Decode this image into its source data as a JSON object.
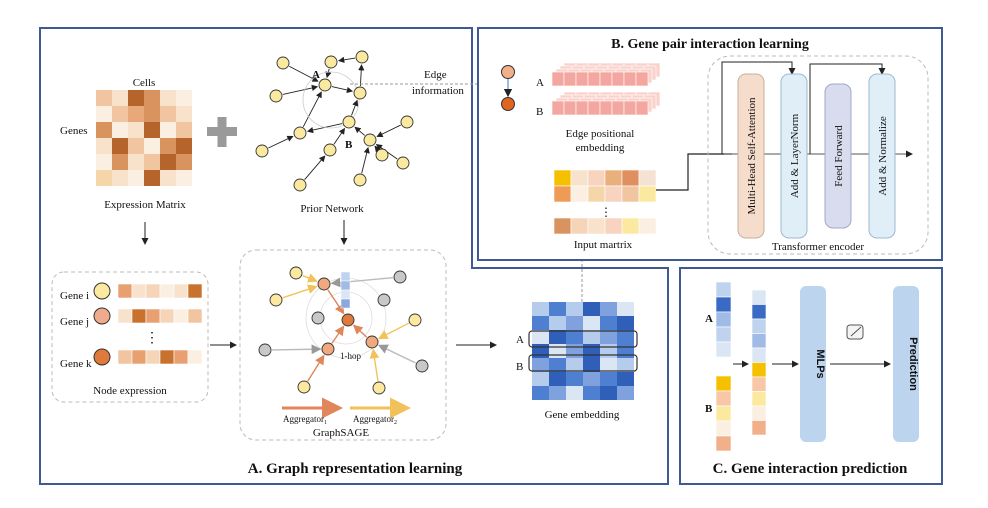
{
  "panel_a": {
    "title": "A. Graph representation learning",
    "cells_label": "Cells",
    "genes_label": "Genes",
    "expression_matrix_label": "Expression Matrix",
    "prior_network_label": "Prior Network",
    "edge_info_line1": "Edge",
    "edge_info_line2": "information",
    "node_a": "A",
    "node_b": "B",
    "gene_i": "Gene i",
    "gene_j": "Gene j",
    "gene_k": "Gene k",
    "ellipsis": "⋮",
    "node_expression_label": "Node expression",
    "hop_label": "1-hop",
    "aggregator1": "Aggregator",
    "aggregator1_sub": "1",
    "aggregator2": "Aggregator",
    "aggregator2_sub": "2",
    "graphsage_label": "GraphSAGE",
    "gene_embedding_label": "Gene embedding",
    "emb_row_a": "A",
    "emb_row_b": "B"
  },
  "panel_b": {
    "title": "B. Gene pair interaction learning",
    "label_a": "A",
    "label_b": "B",
    "edge_pos_line1": "Edge positional",
    "edge_pos_line2": "embedding",
    "input_matrix_label": "Input martrix",
    "ellipsis": "⋮",
    "mhsa": "Multi-Head Self-Attention",
    "addnorm1": "Add & LayerNorm",
    "ff": "Feed Forward",
    "addnorm2": "Add & Normalize",
    "transformer_label": "Transformer encoder"
  },
  "panel_c": {
    "title": "C. Gene interaction prediction",
    "label_a": "A",
    "label_b": "B",
    "mlps": "MLPs",
    "prediction": "Prediction"
  },
  "colors": {
    "panel_border": "#3e5a92",
    "node_yellow": "#fbe9a0",
    "node_orange": "#e68a56",
    "node_dark_orange": "#d2691e",
    "blue_dark": "#3a6bc4",
    "blue_light": "#bfd3ee",
    "pink": "#f3a7a0"
  }
}
